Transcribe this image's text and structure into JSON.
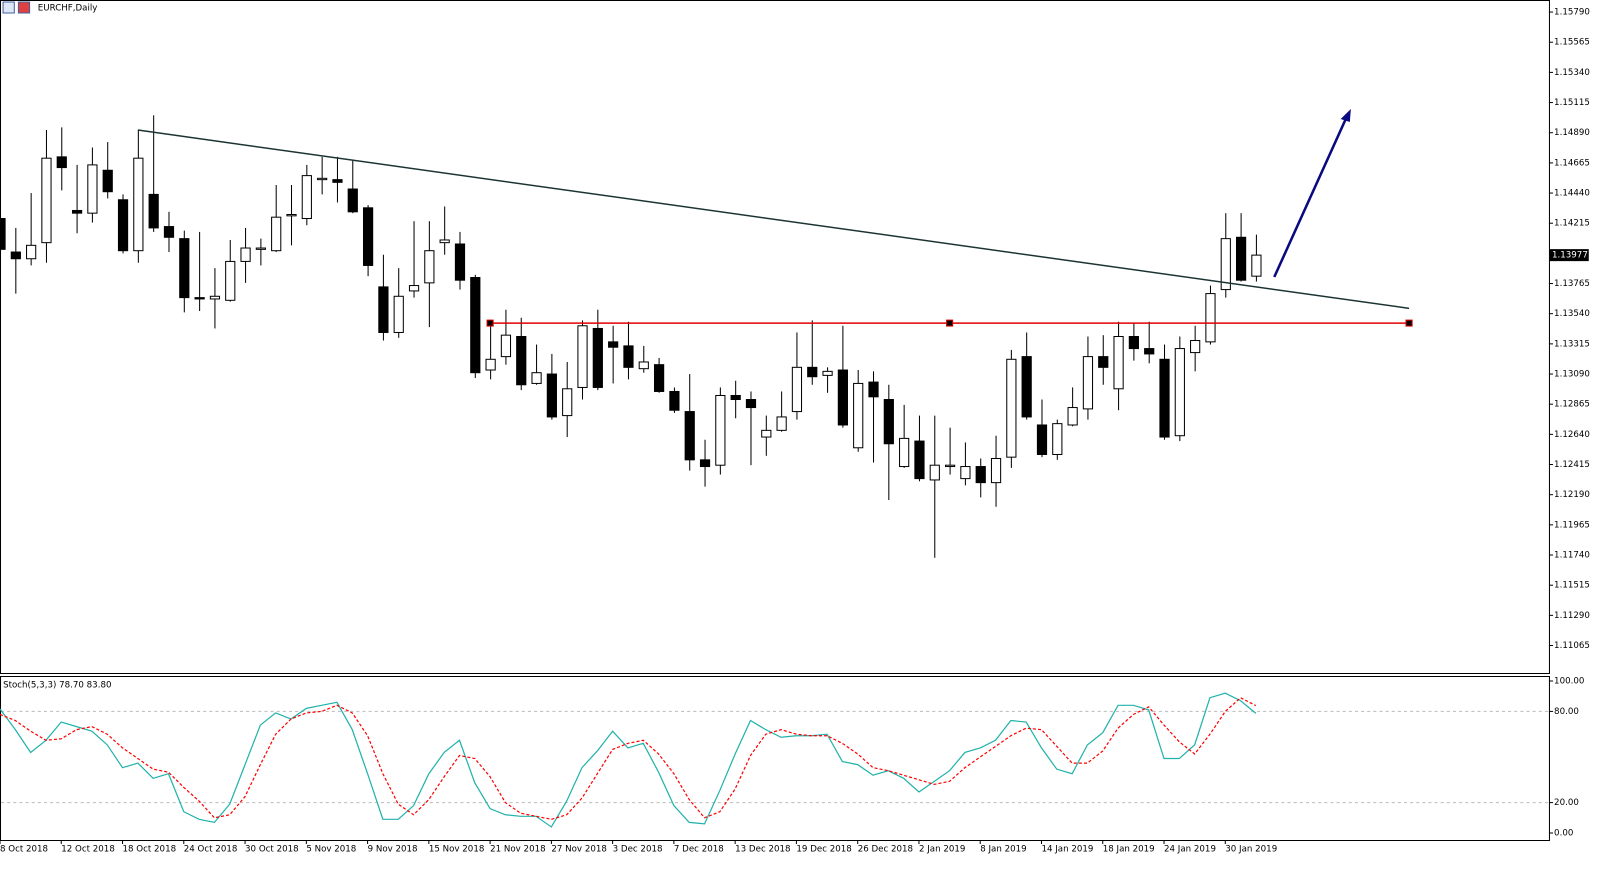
{
  "chart_data": [
    {
      "type": "candlestick",
      "title": "EURCHF,Daily",
      "categories": [
        "8 Oct 2018",
        null,
        null,
        null,
        "12 Oct 2018",
        null,
        null,
        null,
        "18 Oct 2018",
        null,
        null,
        null,
        "24 Oct 2018",
        null,
        null,
        null,
        "30 Oct 2018",
        null,
        null,
        null,
        "5 Nov 2018",
        null,
        null,
        null,
        "9 Nov 2018",
        null,
        null,
        null,
        "15 Nov 2018",
        null,
        null,
        null,
        "21 Nov 2018",
        null,
        null,
        null,
        "27 Nov 2018",
        null,
        null,
        null,
        "3 Dec 2018",
        null,
        null,
        null,
        "7 Dec 2018",
        null,
        null,
        null,
        "13 Dec 2018",
        null,
        null,
        null,
        "19 Dec 2018",
        null,
        null,
        null,
        "26 Dec 2018",
        null,
        null,
        null,
        "2 Jan 2019",
        null,
        null,
        null,
        "8 Jan 2019",
        null,
        null,
        null,
        "14 Jan 2019",
        null,
        null,
        null,
        "18 Jan 2019",
        null,
        null,
        null,
        "24 Jan 2019",
        null,
        null,
        null,
        "30 Jan 2019",
        null,
        null
      ],
      "open": [
        1.1425,
        1.14,
        1.1395,
        1.1407,
        1.1471,
        1.1431,
        1.1429,
        1.1461,
        1.1439,
        1.1401,
        1.1443,
        1.1419,
        1.141,
        1.1366,
        1.1365,
        1.1364,
        1.1393,
        1.1402,
        1.1401,
        1.1427,
        1.1425,
        1.1454,
        1.1454,
        1.1447,
        1.1433,
        1.1374,
        1.134,
        1.1371,
        1.1377,
        1.1407,
        1.1406,
        1.1381,
        1.1312,
        1.1322,
        1.1337,
        1.1302,
        1.1309,
        1.1278,
        1.1299,
        1.1343,
        1.1333,
        1.133,
        1.1313,
        1.1316,
        1.1296,
        1.1281,
        1.1245,
        1.1241,
        1.1293,
        1.129,
        1.1262,
        1.1267,
        1.1281,
        1.1314,
        1.1308,
        1.1312,
        1.1254,
        1.1303,
        1.129,
        1.124,
        1.1259,
        1.123,
        1.124,
        1.1231,
        1.124,
        1.1228,
        1.1247,
        1.1322,
        1.1271,
        1.1249,
        1.1271,
        1.1283,
        1.1322,
        1.1298,
        1.1337,
        1.1328,
        1.132,
        1.1263,
        1.1325,
        1.1333,
        1.1372,
        1.1411,
        1.1382
      ],
      "high": [
        1.1428,
        1.1418,
        1.1444,
        1.1491,
        1.1493,
        1.1465,
        1.1478,
        1.1482,
        1.1443,
        1.1491,
        1.1502,
        1.143,
        1.1416,
        1.1415,
        1.1388,
        1.1409,
        1.1418,
        1.141,
        1.145,
        1.145,
        1.1465,
        1.1471,
        1.1471,
        1.1469,
        1.1435,
        1.1398,
        1.1388,
        1.1423,
        1.1423,
        1.1434,
        1.1415,
        1.1383,
        1.1345,
        1.1357,
        1.1351,
        1.1331,
        1.1324,
        1.1318,
        1.1349,
        1.1357,
        1.1345,
        1.1348,
        1.133,
        1.1321,
        1.1299,
        1.1309,
        1.126,
        1.1299,
        1.1304,
        1.1296,
        1.1278,
        1.1296,
        1.134,
        1.1349,
        1.1314,
        1.1345,
        1.1312,
        1.1311,
        1.1301,
        1.1286,
        1.1278,
        1.1278,
        1.1269,
        1.1258,
        1.1246,
        1.1263,
        1.1327,
        1.134,
        1.129,
        1.1275,
        1.1299,
        1.1337,
        1.1338,
        1.1348,
        1.1347,
        1.1348,
        1.1331,
        1.1337,
        1.1345,
        1.1375,
        1.1429,
        1.1429,
        1.1413
      ],
      "low": [
        1.1398,
        1.1369,
        1.139,
        1.1392,
        1.1446,
        1.1414,
        1.1422,
        1.144,
        1.1399,
        1.1392,
        1.1415,
        1.14,
        1.1355,
        1.1356,
        1.1343,
        1.1363,
        1.1377,
        1.139,
        1.14,
        1.1405,
        1.142,
        1.1443,
        1.1437,
        1.1429,
        1.1382,
        1.1334,
        1.1336,
        1.1366,
        1.1344,
        1.1398,
        1.1372,
        1.1306,
        1.1305,
        1.1316,
        1.1297,
        1.1301,
        1.1275,
        1.1262,
        1.129,
        1.1297,
        1.1302,
        1.1305,
        1.131,
        1.1295,
        1.128,
        1.1237,
        1.1225,
        1.1234,
        1.1276,
        1.1241,
        1.1248,
        1.1266,
        1.1275,
        1.1301,
        1.1295,
        1.1269,
        1.1251,
        1.1243,
        1.1215,
        1.1239,
        1.1229,
        1.1172,
        1.1234,
        1.1226,
        1.1217,
        1.121,
        1.1239,
        1.1275,
        1.1247,
        1.1245,
        1.127,
        1.1275,
        1.1301,
        1.1282,
        1.1319,
        1.1317,
        1.126,
        1.1259,
        1.1311,
        1.1331,
        1.1366,
        1.1378,
        1.1378
      ],
      "close": [
        1.1402,
        1.1395,
        1.1405,
        1.147,
        1.1463,
        1.1429,
        1.1465,
        1.1445,
        1.1401,
        1.147,
        1.1418,
        1.1411,
        1.1366,
        1.1365,
        1.1367,
        1.1393,
        1.1403,
        1.1403,
        1.1426,
        1.1428,
        1.1457,
        1.1455,
        1.1452,
        1.143,
        1.139,
        1.134,
        1.1367,
        1.1375,
        1.1401,
        1.1409,
        1.1379,
        1.131,
        1.132,
        1.1338,
        1.1301,
        1.131,
        1.1277,
        1.1298,
        1.1345,
        1.1299,
        1.1329,
        1.1314,
        1.1318,
        1.1296,
        1.1282,
        1.1245,
        1.124,
        1.1293,
        1.129,
        1.1284,
        1.1267,
        1.1277,
        1.1314,
        1.1307,
        1.1311,
        1.1271,
        1.1302,
        1.1292,
        1.1257,
        1.1261,
        1.1231,
        1.1241,
        1.1241,
        1.124,
        1.1228,
        1.1246,
        1.132,
        1.1277,
        1.1249,
        1.1272,
        1.1284,
        1.1322,
        1.1314,
        1.1337,
        1.1328,
        1.1324,
        1.1262,
        1.1328,
        1.1334,
        1.1369,
        1.141,
        1.1379,
        1.13977
      ],
      "up_color": "#ffffff",
      "down_color": "#000000",
      "ylim": [
        1.1086,
        1.1588
      ],
      "yticks": [
        {
          "value": 1.1579,
          "label": "1.15790"
        },
        1.15565,
        {
          "value": 1.1534,
          "label": "1.15340"
        },
        1.15115,
        {
          "value": 1.1489,
          "label": "1.14890"
        },
        1.14665,
        {
          "value": 1.1444,
          "label": "1.14440"
        },
        1.14215,
        1.13765,
        {
          "value": 1.1354,
          "label": "1.13540"
        },
        1.13315,
        {
          "value": 1.1309,
          "label": "1.13090"
        },
        1.12865,
        {
          "value": 1.1264,
          "label": "1.12640"
        },
        1.12415,
        {
          "value": 1.1219,
          "label": "1.12190"
        },
        1.11965,
        {
          "value": 1.1174,
          "label": "1.11740"
        },
        1.11515,
        {
          "value": 1.1129,
          "label": "1.11290"
        },
        1.11065
      ],
      "lines": [
        {
          "x": [
            9,
            92
          ],
          "y": [
            1.1491,
            1.1358
          ],
          "color": "#1c3333"
        },
        {
          "x": [
            32,
            92
          ],
          "y": [
            1.1347,
            1.1347
          ],
          "color": "#e00000",
          "markers": true
        }
      ]
    },
    {
      "type": "line",
      "title": "Stoch(5,3,3) 78.70 83.80",
      "series": [
        {
          "color": "#20b2aa",
          "dash": false,
          "values": [
            81.6,
            68,
            53,
            61,
            73,
            70,
            67,
            58,
            43,
            46,
            36,
            39,
            14,
            9,
            7,
            19,
            45,
            71,
            79,
            75,
            82,
            84,
            86,
            68,
            39,
            9,
            9,
            18,
            39,
            53,
            61,
            33,
            16,
            12,
            11,
            11,
            4,
            21,
            43,
            54,
            67,
            56,
            59,
            40,
            18,
            7,
            6,
            28,
            52,
            74,
            68,
            63,
            64,
            64,
            65,
            47,
            45,
            38,
            41,
            36,
            27,
            34,
            41,
            53,
            56,
            61,
            74,
            73,
            56,
            42,
            39,
            58,
            66,
            84,
            84,
            81,
            49,
            49,
            58,
            89,
            92,
            87,
            78.7
          ]
        },
        {
          "color": "#ff0000",
          "dash": true,
          "values": [
            78,
            74,
            67,
            61,
            62,
            68,
            70,
            65,
            56,
            49,
            42,
            40,
            30,
            21,
            10,
            12,
            24,
            45,
            65,
            75,
            79,
            80,
            84,
            79,
            64,
            39,
            19,
            12,
            22,
            37,
            51,
            49,
            37,
            20,
            13,
            11,
            9,
            12,
            23,
            39,
            55,
            59,
            61,
            52,
            39,
            22,
            10,
            14,
            29,
            51,
            65,
            68,
            65,
            64,
            64,
            59,
            52,
            43,
            41,
            38,
            35,
            32,
            34,
            43,
            50,
            57,
            64,
            69,
            68,
            57,
            46,
            46,
            54,
            69,
            78,
            83,
            71,
            60,
            52,
            65,
            80,
            89,
            83.8
          ]
        }
      ],
      "ylim": [
        -4.6,
        103.3
      ],
      "yticks": [
        {
          "value": 100,
          "label": "100.00"
        },
        {
          "value": 80,
          "label": "80.00"
        },
        {
          "value": 20,
          "label": "20.00"
        },
        {
          "value": 0,
          "label": "0.00"
        }
      ],
      "levels": [
        80,
        20
      ]
    }
  ]
}
